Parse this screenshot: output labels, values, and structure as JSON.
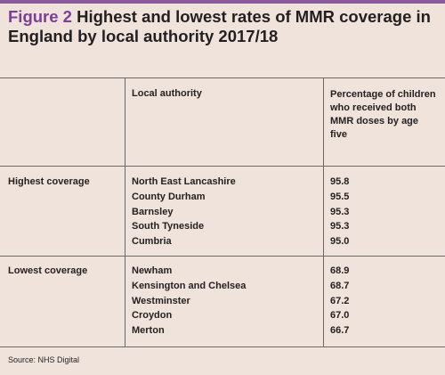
{
  "figure": {
    "label": "Figure 2",
    "title_rest": " Highest and lowest rates of MMR coverage in England by local authority 2017/18"
  },
  "table": {
    "col_local_authority": "Local authority",
    "col_percentage": "Percentage of children who received both MMR doses by age five",
    "groups": [
      {
        "label": "Highest coverage",
        "rows": [
          {
            "authority": "North East Lancashire",
            "value": "95.8"
          },
          {
            "authority": "County Durham",
            "value": "95.5"
          },
          {
            "authority": "Barnsley",
            "value": "95.3"
          },
          {
            "authority": "South Tyneside",
            "value": "95.3"
          },
          {
            "authority": "Cumbria",
            "value": "95.0"
          }
        ]
      },
      {
        "label": "Lowest coverage",
        "rows": [
          {
            "authority": "Newham",
            "value": "68.9"
          },
          {
            "authority": "Kensington and Chelsea",
            "value": "68.7"
          },
          {
            "authority": "Westminster",
            "value": "67.2"
          },
          {
            "authority": "Croydon",
            "value": "67.0"
          },
          {
            "authority": "Merton",
            "value": "66.7"
          }
        ]
      }
    ]
  },
  "source": "Source: NHS Digital",
  "colors": {
    "accent": "#7b3f97",
    "topbar": "#8a5a9c",
    "background": "#efe3dc",
    "rule": "#6b6b6b"
  }
}
